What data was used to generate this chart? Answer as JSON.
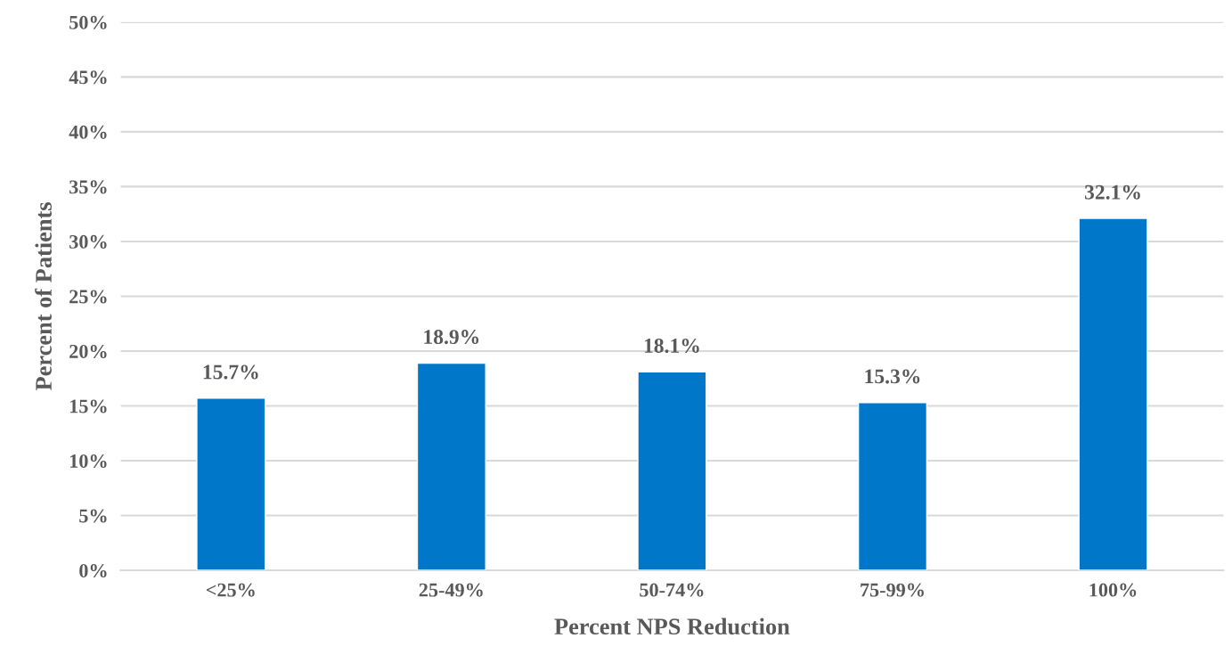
{
  "chart_data": {
    "type": "bar",
    "xlabel": "Percent NPS Reduction",
    "ylabel": "Percent of Patients",
    "categories": [
      "<25%",
      "25-49%",
      "50-74%",
      "75-99%",
      "100%"
    ],
    "values": [
      15.7,
      18.9,
      18.1,
      15.3,
      32.1
    ],
    "value_labels": [
      "15.7%",
      "18.9%",
      "18.1%",
      "15.3%",
      "32.1%"
    ],
    "color": "#0077c8",
    "ylim": [
      0,
      50
    ],
    "yticks": [
      {
        "value": 0,
        "label": "0%"
      },
      {
        "value": 5,
        "label": "5%"
      },
      {
        "value": 10,
        "label": "10%"
      },
      {
        "value": 15,
        "label": "15%"
      },
      {
        "value": 20,
        "label": "20%"
      },
      {
        "value": 25,
        "label": "25%"
      },
      {
        "value": 30,
        "label": "30%"
      },
      {
        "value": 35,
        "label": "35%"
      },
      {
        "value": 40,
        "label": "40%"
      },
      {
        "value": 45,
        "label": "45%"
      },
      {
        "value": 50,
        "label": "50%"
      }
    ],
    "grid": "y",
    "legend": false
  }
}
